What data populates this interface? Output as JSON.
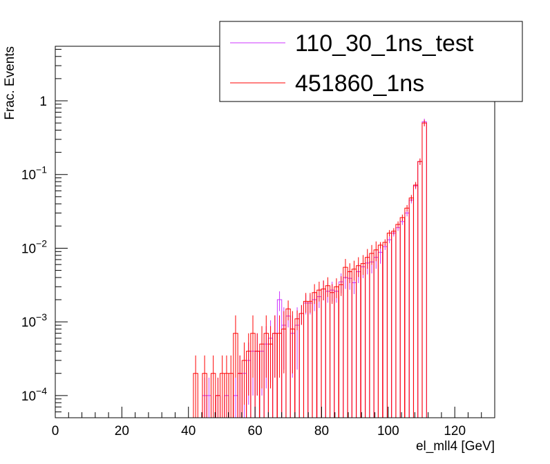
{
  "chart_data": {
    "type": "histogram",
    "xlabel": "el_mll4 [GeV]",
    "ylabel": "Frac. Events",
    "xlim": [
      0,
      132
    ],
    "ylim": [
      5e-05,
      5.5
    ],
    "log_y": true,
    "bin_width": 1.32,
    "x_ticks": [
      0,
      20,
      40,
      60,
      80,
      100,
      120
    ],
    "y_ticks": [
      {
        "value": 0.0001,
        "base": "10",
        "exp": "−4"
      },
      {
        "value": 0.001,
        "base": "10",
        "exp": "−3"
      },
      {
        "value": 0.01,
        "base": "10",
        "exp": "−2"
      },
      {
        "value": 0.1,
        "base": "10",
        "exp": "−1"
      },
      {
        "value": 1,
        "base": "1",
        "exp": ""
      }
    ],
    "legend_position": "top-right",
    "series": [
      {
        "name": "110_30_1ns_test",
        "color": "#cc33ff",
        "bins": [
          [
            44.2,
            0.0001
          ],
          [
            45.5,
            0.0001
          ],
          [
            48.2,
            0.0001
          ],
          [
            50.8,
            0.0001
          ],
          [
            53.5,
            0.0001
          ],
          [
            54.8,
            0.0002
          ],
          [
            56.1,
            0.0002
          ],
          [
            57.4,
            0.0003
          ],
          [
            58.7,
            0.0004
          ],
          [
            60.0,
            0.0004
          ],
          [
            61.4,
            0.0004
          ],
          [
            62.7,
            0.0005
          ],
          [
            64.0,
            0.0006
          ],
          [
            65.3,
            0.0007
          ],
          [
            66.7,
            0.002
          ],
          [
            68.0,
            0.0009
          ],
          [
            69.3,
            0.0012
          ],
          [
            70.6,
            0.0007
          ],
          [
            72.0,
            0.0009
          ],
          [
            73.3,
            0.0013
          ],
          [
            74.6,
            0.0018
          ],
          [
            75.9,
            0.0018
          ],
          [
            77.2,
            0.002
          ],
          [
            78.6,
            0.0022
          ],
          [
            79.9,
            0.0028
          ],
          [
            81.2,
            0.0026
          ],
          [
            82.5,
            0.0027
          ],
          [
            83.8,
            0.0026
          ],
          [
            85.2,
            0.0035
          ],
          [
            86.5,
            0.004
          ],
          [
            87.8,
            0.0039
          ],
          [
            89.1,
            0.0034
          ],
          [
            90.4,
            0.0048
          ],
          [
            91.8,
            0.0056
          ],
          [
            93.1,
            0.0063
          ],
          [
            94.4,
            0.0065
          ],
          [
            95.7,
            0.0075
          ],
          [
            97.0,
            0.0088
          ],
          [
            98.4,
            0.0105
          ],
          [
            99.7,
            0.013
          ],
          [
            101.0,
            0.016
          ],
          [
            102.3,
            0.019
          ],
          [
            103.6,
            0.023
          ],
          [
            105.0,
            0.03
          ],
          [
            106.3,
            0.045
          ],
          [
            107.6,
            0.07
          ],
          [
            108.9,
            0.15
          ],
          [
            110.2,
            0.52
          ]
        ]
      },
      {
        "name": "451860_1ns",
        "color": "#ff0000",
        "bins": [
          [
            41.5,
            0.0002
          ],
          [
            44.2,
            0.0002
          ],
          [
            46.8,
            0.0002
          ],
          [
            48.2,
            0.0001
          ],
          [
            49.5,
            0.0002
          ],
          [
            50.8,
            0.0002
          ],
          [
            52.1,
            0.0002
          ],
          [
            53.5,
            0.0007
          ],
          [
            54.8,
            0.0002
          ],
          [
            56.1,
            0.0003
          ],
          [
            57.4,
            0.0004
          ],
          [
            58.7,
            0.0007
          ],
          [
            60.0,
            0.0004
          ],
          [
            61.4,
            0.0005
          ],
          [
            62.7,
            0.0007
          ],
          [
            64.0,
            0.0005
          ],
          [
            65.3,
            0.0007
          ],
          [
            66.7,
            0.0007
          ],
          [
            68.0,
            0.0008
          ],
          [
            69.3,
            0.0015
          ],
          [
            70.6,
            0.0008
          ],
          [
            72.0,
            0.0011
          ],
          [
            73.3,
            0.0013
          ],
          [
            74.6,
            0.0019
          ],
          [
            75.9,
            0.0019
          ],
          [
            77.2,
            0.0025
          ],
          [
            78.6,
            0.0027
          ],
          [
            79.9,
            0.0028
          ],
          [
            81.2,
            0.0031
          ],
          [
            82.5,
            0.0025
          ],
          [
            83.8,
            0.003
          ],
          [
            85.2,
            0.0032
          ],
          [
            86.5,
            0.0055
          ],
          [
            87.8,
            0.0048
          ],
          [
            89.1,
            0.0052
          ],
          [
            90.4,
            0.0058
          ],
          [
            91.8,
            0.0062
          ],
          [
            93.1,
            0.0075
          ],
          [
            94.4,
            0.0085
          ],
          [
            95.7,
            0.0095
          ],
          [
            97.0,
            0.011
          ],
          [
            98.4,
            0.012
          ],
          [
            99.7,
            0.016
          ],
          [
            101.0,
            0.017
          ],
          [
            102.3,
            0.021
          ],
          [
            103.6,
            0.026
          ],
          [
            105.0,
            0.035
          ],
          [
            106.3,
            0.048
          ],
          [
            107.6,
            0.072
          ],
          [
            108.9,
            0.15
          ],
          [
            110.2,
            0.5
          ]
        ]
      }
    ]
  }
}
